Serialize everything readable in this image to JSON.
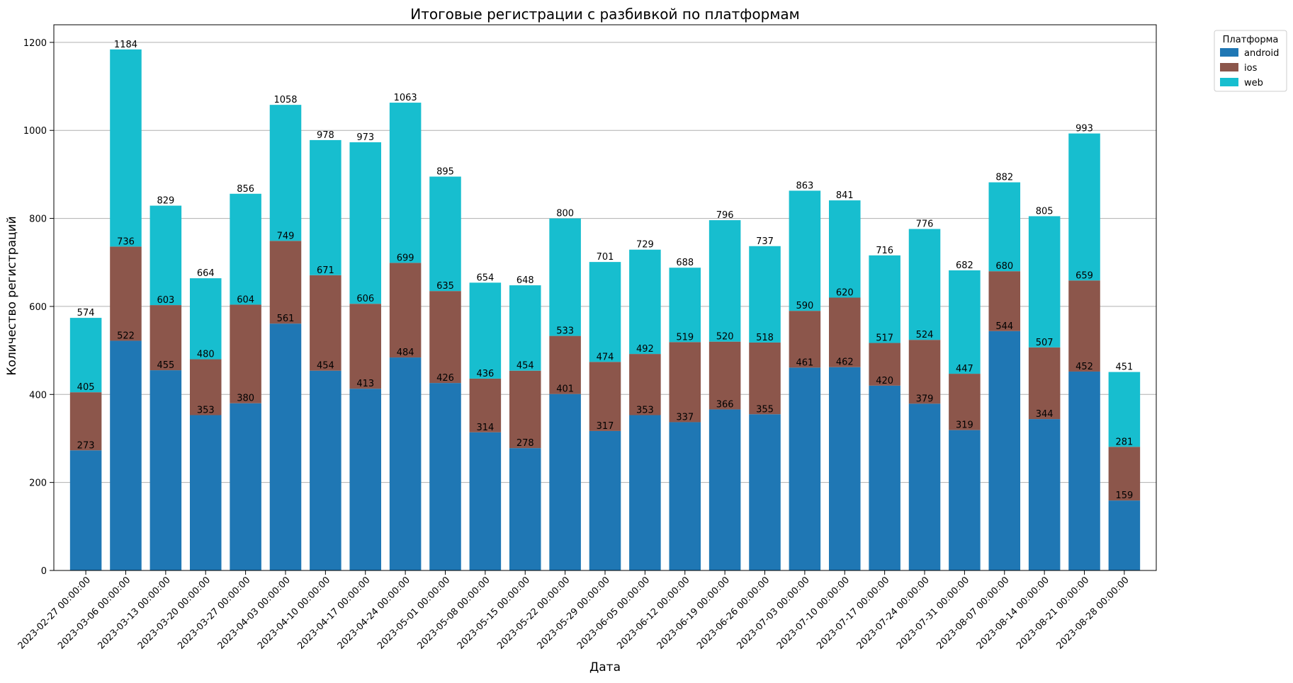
{
  "chart_data": {
    "type": "bar",
    "stacked": true,
    "title": "Итоговые регистрации с разбивкой по платформам",
    "xlabel": "Дата",
    "ylabel": "Количество регистраций",
    "ylim": [
      0,
      1240
    ],
    "yticks": [
      0,
      200,
      400,
      600,
      800,
      1000,
      1200
    ],
    "grid": "y",
    "legend": {
      "title": "Платформа",
      "placement": "outside-top-right"
    },
    "categories": [
      "2023-02-27 00:00:00",
      "2023-03-06 00:00:00",
      "2023-03-13 00:00:00",
      "2023-03-20 00:00:00",
      "2023-03-27 00:00:00",
      "2023-04-03 00:00:00",
      "2023-04-10 00:00:00",
      "2023-04-17 00:00:00",
      "2023-04-24 00:00:00",
      "2023-05-01 00:00:00",
      "2023-05-08 00:00:00",
      "2023-05-15 00:00:00",
      "2023-05-22 00:00:00",
      "2023-05-29 00:00:00",
      "2023-06-05 00:00:00",
      "2023-06-12 00:00:00",
      "2023-06-19 00:00:00",
      "2023-06-26 00:00:00",
      "2023-07-03 00:00:00",
      "2023-07-10 00:00:00",
      "2023-07-17 00:00:00",
      "2023-07-24 00:00:00",
      "2023-07-31 00:00:00",
      "2023-08-07 00:00:00",
      "2023-08-14 00:00:00",
      "2023-08-21 00:00:00",
      "2023-08-28 00:00:00"
    ],
    "series": [
      {
        "name": "android",
        "color": "#1f77b4",
        "values": [
          273,
          522,
          455,
          353,
          380,
          561,
          454,
          413,
          484,
          426,
          314,
          278,
          401,
          317,
          353,
          337,
          366,
          355,
          461,
          462,
          420,
          379,
          319,
          544,
          344,
          452,
          159
        ]
      },
      {
        "name": "ios",
        "color": "#8c564b",
        "values": [
          132,
          214,
          148,
          127,
          224,
          188,
          217,
          193,
          215,
          209,
          122,
          176,
          132,
          157,
          139,
          182,
          154,
          163,
          129,
          158,
          97,
          145,
          128,
          136,
          163,
          207,
          122
        ]
      },
      {
        "name": "web",
        "color": "#17becf",
        "values": [
          169,
          448,
          226,
          184,
          252,
          309,
          307,
          367,
          364,
          260,
          218,
          194,
          267,
          227,
          237,
          169,
          276,
          219,
          273,
          221,
          199,
          252,
          235,
          202,
          298,
          334,
          170
        ]
      }
    ]
  }
}
